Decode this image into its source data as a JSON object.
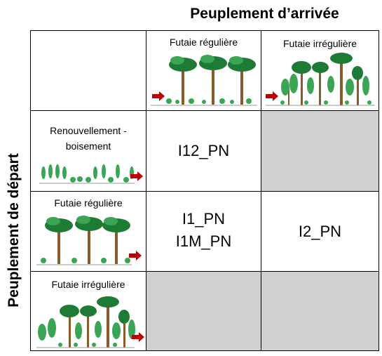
{
  "headers": {
    "arrival": "Peuplement d’arrivée",
    "departure": "Peuplement de départ"
  },
  "columns": [
    {
      "label": "Futaie régulière",
      "icon": "even-aged-forest-icon"
    },
    {
      "label": "Futaie irrégulière",
      "icon": "uneven-aged-forest-icon"
    }
  ],
  "rows": [
    {
      "label_line1": "Renouvellement -",
      "label_line2": "boisement",
      "icon": "regeneration-icon"
    },
    {
      "label": "Futaie régulière",
      "icon": "even-aged-forest-icon"
    },
    {
      "label": "Futaie irrégulière",
      "icon": "uneven-aged-forest-icon"
    }
  ],
  "cells": {
    "r1c1": "I12_PN",
    "r2c1_line1": "I1_PN",
    "r2c1_line2": "I1M_PN",
    "r2c2": "I2_PN"
  },
  "colors": {
    "arrow": "#c00000",
    "not_applicable": "#d0d0d0",
    "foliage_dark": "#1e7b35",
    "foliage_light": "#3aa655",
    "trunk": "#8b5a2b"
  }
}
